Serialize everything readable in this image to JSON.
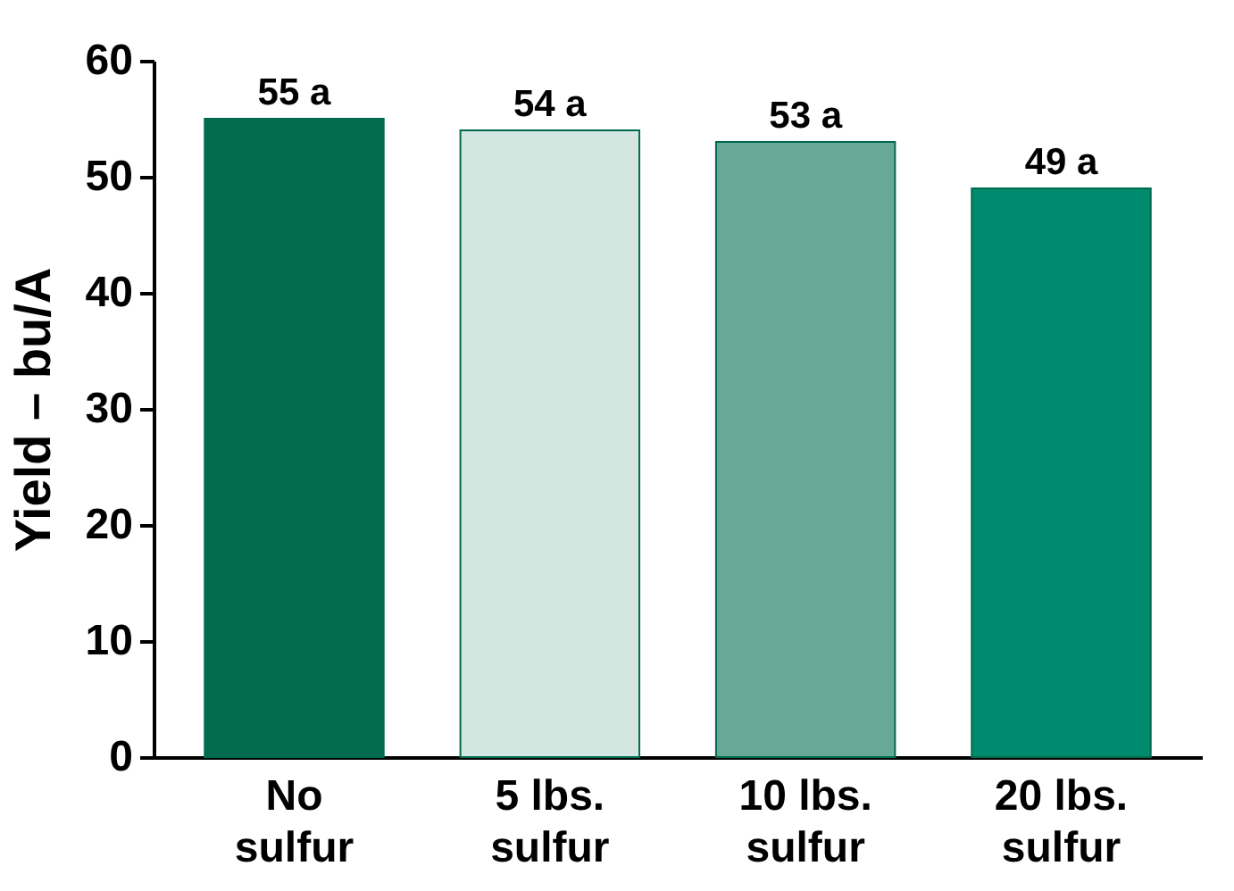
{
  "chart_data": {
    "type": "bar",
    "ylabel": "Yield – bu/A",
    "categories": [
      "No sulfur",
      "5 lbs. sulfur",
      "10 lbs. sulfur",
      "20 lbs. sulfur"
    ],
    "values": [
      55,
      54,
      53,
      49
    ],
    "colors": [
      "#006b4f",
      "#d3e6df",
      "#68a896",
      "#008a6e"
    ],
    "value_labels": [
      "55 a",
      "54 a",
      "53 a",
      "49 a"
    ],
    "ylim": [
      0,
      60
    ],
    "yticks": [
      0,
      10,
      20,
      30,
      40,
      50,
      60
    ],
    "grid": false
  }
}
